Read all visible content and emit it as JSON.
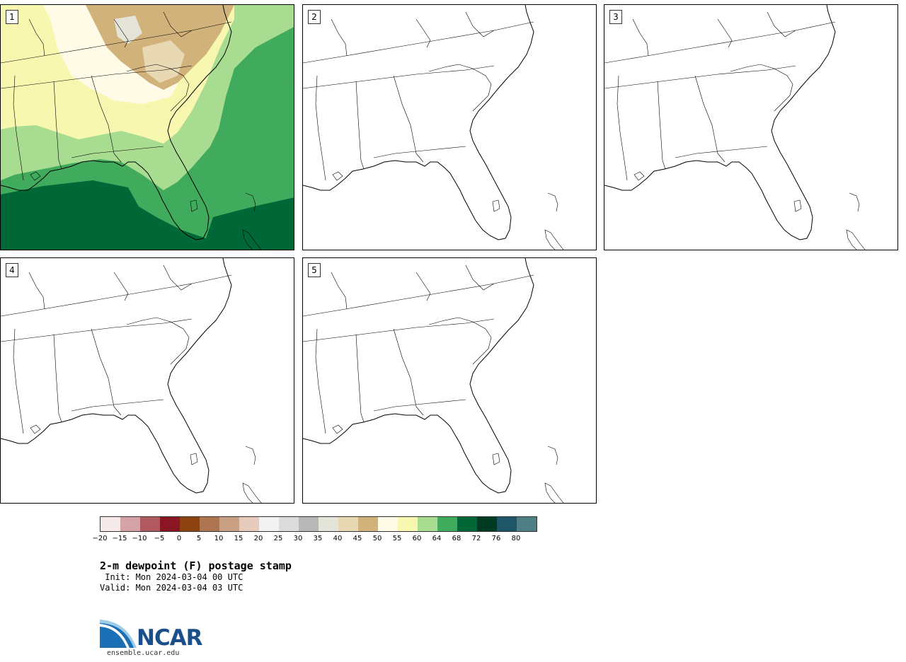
{
  "panels": [
    {
      "number": "1",
      "has_field": true
    },
    {
      "number": "2",
      "has_field": false
    },
    {
      "number": "3",
      "has_field": false
    },
    {
      "number": "4",
      "has_field": false
    },
    {
      "number": "5",
      "has_field": false
    }
  ],
  "colorbar": {
    "colors": [
      "#f5e9e9",
      "#d4a3a8",
      "#b0595f",
      "#8a1523",
      "#8c4310",
      "#ad7650",
      "#c9a084",
      "#e6cabb",
      "#f2f2f2",
      "#dcdcdc",
      "#b8b8b8",
      "#e4e4d8",
      "#e8d9b4",
      "#d1b27a",
      "#fffbe6",
      "#f7f7b0",
      "#a8dc90",
      "#41ab5d",
      "#006837",
      "#013a22",
      "#1e5668",
      "#4f7f85"
    ],
    "ticks": [
      "−20",
      "−15",
      "−10",
      "−5",
      "0",
      "5",
      "10",
      "15",
      "20",
      "25",
      "30",
      "35",
      "40",
      "45",
      "50",
      "55",
      "60",
      "64",
      "68",
      "72",
      "76",
      "80"
    ]
  },
  "title": "2-m dewpoint (F) postage stamp",
  "init": " Init: Mon 2024-03-04 00 UTC",
  "valid": "Valid: Mon 2024-03-04 03 UTC",
  "logo": {
    "word": "NCAR",
    "url": "ensemble.ucar.edu"
  }
}
